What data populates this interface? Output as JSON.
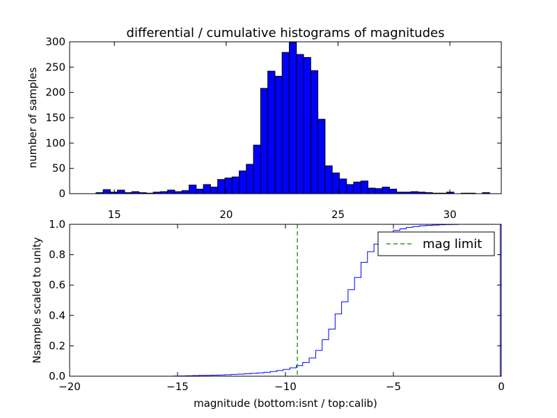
{
  "chart_data": [
    {
      "type": "bar",
      "title": "differential / cumulative histograms of magnitudes",
      "xlabel": "",
      "ylabel": "number of samples",
      "xlim": [
        13,
        32.3
      ],
      "ylim": [
        0,
        300
      ],
      "xticks": [
        15,
        20,
        25,
        30
      ],
      "yticks": [
        0,
        50,
        100,
        150,
        200,
        250,
        300
      ],
      "xtick_position": "top-of-bottom-axis",
      "bar_color": "#0000ff",
      "bin_width": 0.32,
      "bin_starts": [
        14.18,
        14.5,
        14.82,
        15.14,
        15.46,
        15.78,
        16.1,
        16.42,
        16.74,
        17.06,
        17.38,
        17.7,
        18.02,
        18.34,
        18.66,
        18.98,
        19.3,
        19.62,
        19.94,
        20.26,
        20.58,
        20.9,
        21.22,
        21.54,
        21.86,
        22.18,
        22.5,
        22.82,
        23.14,
        23.46,
        23.78,
        24.1,
        24.42,
        24.74,
        25.06,
        25.38,
        25.7,
        26.02,
        26.34,
        26.66,
        26.98,
        27.3,
        27.62,
        27.94,
        28.26,
        28.58,
        28.9,
        29.22,
        29.54,
        29.86,
        30.18,
        30.5,
        30.82,
        31.14,
        31.46
      ],
      "values": [
        2,
        8,
        3,
        7,
        2,
        4,
        2,
        1,
        3,
        4,
        7,
        4,
        6,
        17,
        9,
        18,
        13,
        28,
        31,
        33,
        45,
        58,
        96,
        208,
        242,
        232,
        279,
        299,
        275,
        269,
        243,
        147,
        55,
        41,
        29,
        18,
        23,
        25,
        11,
        10,
        13,
        9,
        3,
        3,
        4,
        3,
        2,
        1,
        1,
        3,
        0,
        1,
        1,
        0,
        2
      ]
    },
    {
      "type": "line",
      "title": "",
      "xlabel": "magnitude (bottom:isnt / top:calib)",
      "ylabel": "Nsample scaled to unity",
      "xlim": [
        -20,
        0
      ],
      "ylim": [
        0,
        1.0
      ],
      "xticks": [
        -20,
        -15,
        -10,
        -5,
        0
      ],
      "xtick_labels": [
        "−20",
        "−15",
        "−10",
        "−5",
        "0"
      ],
      "yticks": [
        0.0,
        0.2,
        0.4,
        0.6,
        0.8,
        1.0
      ],
      "ytick_labels": [
        "0.0",
        "0.2",
        "0.4",
        "0.6",
        "0.8",
        "1.0"
      ],
      "legend": {
        "placement": "top-right",
        "entries": [
          {
            "label": "mag limit",
            "style": "dashed",
            "color": "#008000"
          }
        ]
      },
      "mag_limit": -9.45,
      "series": [
        {
          "name": "",
          "style": "step",
          "color": "#0000ff",
          "x": [
            -20,
            -15.2,
            -14.9,
            -14.6,
            -14.3,
            -14.0,
            -13.7,
            -13.4,
            -13.1,
            -12.8,
            -12.5,
            -12.2,
            -11.9,
            -11.6,
            -11.3,
            -11.0,
            -10.7,
            -10.4,
            -10.1,
            -9.8,
            -9.5,
            -9.2,
            -8.9,
            -8.6,
            -8.3,
            -8.0,
            -7.7,
            -7.4,
            -7.1,
            -6.8,
            -6.5,
            -6.2,
            -5.9,
            -5.6,
            -5.3,
            -5.0,
            -4.7,
            -4.4,
            -4.1,
            -3.8,
            -3.5,
            -3.2,
            -2.9,
            -2.6,
            -2.3,
            -2.0,
            -1.7,
            -1.4,
            -1.1,
            -0.8,
            -0.5,
            -0.2,
            -0.05
          ],
          "y": [
            0,
            0.001,
            0.002,
            0.003,
            0.004,
            0.005,
            0.006,
            0.007,
            0.008,
            0.01,
            0.012,
            0.014,
            0.016,
            0.019,
            0.022,
            0.026,
            0.031,
            0.037,
            0.045,
            0.055,
            0.07,
            0.09,
            0.12,
            0.17,
            0.24,
            0.31,
            0.41,
            0.49,
            0.57,
            0.65,
            0.75,
            0.82,
            0.87,
            0.91,
            0.94,
            0.96,
            0.97,
            0.98,
            0.985,
            0.99,
            0.993,
            0.995,
            0.997,
            0.998,
            0.999,
            1.0,
            1.0,
            1.0,
            1.0,
            1.0,
            1.0,
            1.0,
            0
          ]
        }
      ]
    }
  ]
}
